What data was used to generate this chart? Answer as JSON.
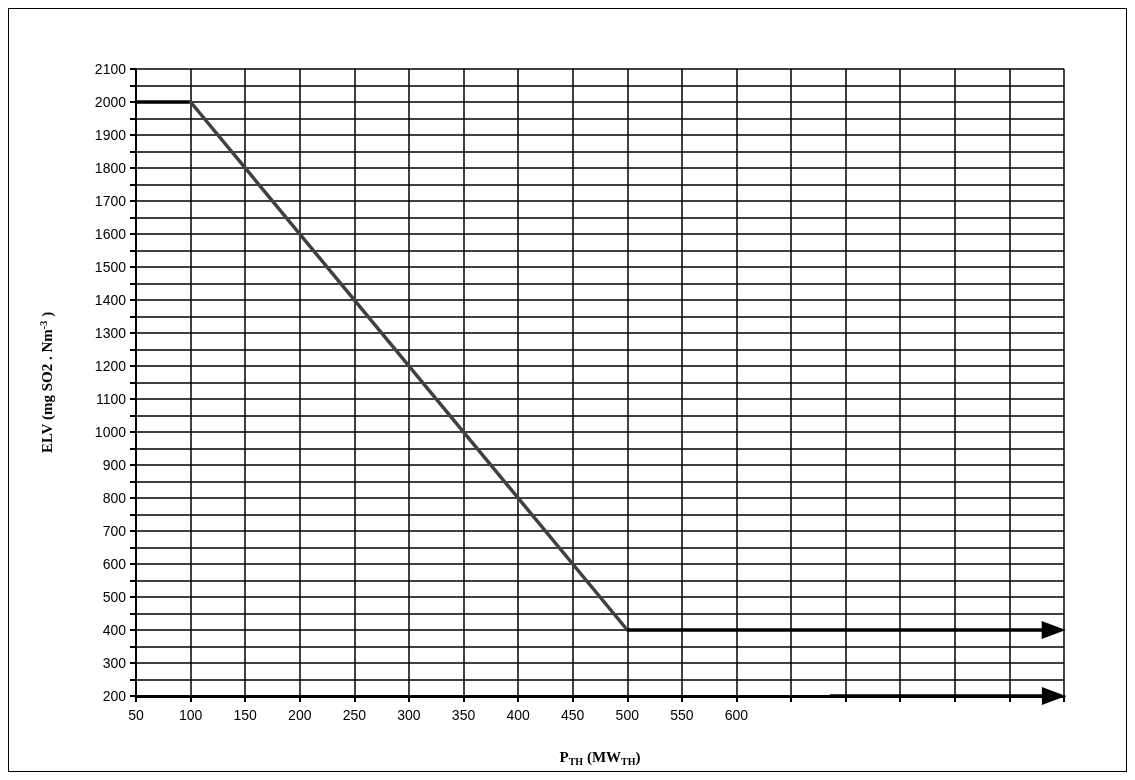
{
  "chart_data": {
    "type": "line",
    "xlabel": "P$_{TH}$ (MW$_{TH}$)",
    "ylabel": "ELV (mg SO2 . Nm$^{-3}$)",
    "series": [
      {
        "color": "#000000",
        "x": [
          50,
          100
        ],
        "values": [
          2000,
          2000
        ]
      },
      {
        "color": "#404040",
        "x": [
          100,
          500
        ],
        "values": [
          2000,
          400
        ]
      }
    ],
    "xlim": [
      50,
      900
    ],
    "xticks": [
      50,
      100,
      150,
      200,
      250,
      300,
      350,
      400,
      450,
      500,
      550,
      600,
      {
        "value": 650,
        "label": null
      },
      {
        "value": 700,
        "label": null
      },
      {
        "value": 750,
        "label": null
      },
      {
        "value": 800,
        "label": null
      },
      {
        "value": 850,
        "label": null
      },
      {
        "value": 900,
        "label": null
      }
    ],
    "ylim": [
      200,
      2100
    ],
    "yticks": [
      200,
      {
        "value": 250,
        "label": null
      },
      300,
      {
        "value": 350,
        "label": null
      },
      400,
      {
        "value": 450,
        "label": null
      },
      500,
      {
        "value": 550,
        "label": null
      },
      600,
      {
        "value": 650,
        "label": null
      },
      700,
      {
        "value": 750,
        "label": null
      },
      800,
      {
        "value": 850,
        "label": null
      },
      900,
      {
        "value": 950,
        "label": null
      },
      1000,
      {
        "value": 1050,
        "label": null
      },
      1100,
      {
        "value": 1150,
        "label": null
      },
      1200,
      {
        "value": 1250,
        "label": null
      },
      1300,
      {
        "value": 1350,
        "label": null
      },
      1400,
      {
        "value": 1450,
        "label": null
      },
      1500,
      {
        "value": 1550,
        "label": null
      },
      1600,
      {
        "value": 1650,
        "label": null
      },
      1700,
      {
        "value": 1750,
        "label": null
      },
      1800,
      {
        "value": 1850,
        "label": null
      },
      1900,
      {
        "value": 1950,
        "label": null
      },
      2000,
      {
        "value": 2050,
        "label": null
      },
      2100
    ],
    "grid": true,
    "marker": "none",
    "line_style": "solid"
  }
}
